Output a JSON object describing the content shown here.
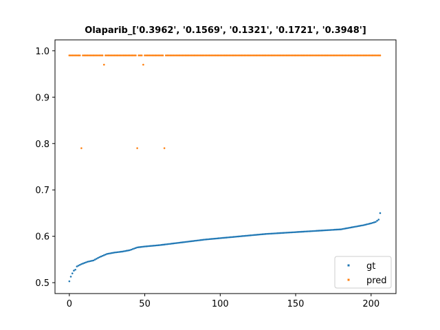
{
  "chart_data": {
    "type": "scatter",
    "title": "Olaparib_['0.3962', '0.1569', '0.1321', '0.1721', '0.3948']",
    "xlabel": "",
    "ylabel": "",
    "xlim": [
      -9.5,
      216.5
    ],
    "ylim": [
      0.4765,
      1.0235
    ],
    "x_ticks": [
      0,
      50,
      100,
      150,
      200
    ],
    "y_ticks": [
      0.5,
      0.6,
      0.7,
      0.8,
      0.9,
      1.0
    ],
    "y_tick_labels": [
      "0.5",
      "0.6",
      "0.7",
      "0.8",
      "0.9",
      "1.0"
    ],
    "grid": false,
    "legend_position": "lower-right",
    "n_points": 207,
    "series": [
      {
        "name": "gt",
        "color": "#1f77b4",
        "curve_anchors": [
          [
            0,
            0.503
          ],
          [
            1,
            0.513
          ],
          [
            2,
            0.52
          ],
          [
            3,
            0.526
          ],
          [
            4,
            0.528
          ],
          [
            5,
            0.535
          ],
          [
            8,
            0.54
          ],
          [
            12,
            0.545
          ],
          [
            16,
            0.548
          ],
          [
            20,
            0.555
          ],
          [
            25,
            0.562
          ],
          [
            30,
            0.565
          ],
          [
            35,
            0.567
          ],
          [
            40,
            0.57
          ],
          [
            45,
            0.576
          ],
          [
            50,
            0.578
          ],
          [
            60,
            0.581
          ],
          [
            70,
            0.585
          ],
          [
            80,
            0.589
          ],
          [
            90,
            0.593
          ],
          [
            100,
            0.596
          ],
          [
            110,
            0.599
          ],
          [
            120,
            0.602
          ],
          [
            130,
            0.605
          ],
          [
            140,
            0.607
          ],
          [
            150,
            0.609
          ],
          [
            160,
            0.611
          ],
          [
            170,
            0.613
          ],
          [
            180,
            0.615
          ],
          [
            185,
            0.618
          ],
          [
            190,
            0.621
          ],
          [
            195,
            0.624
          ],
          [
            200,
            0.628
          ],
          [
            203,
            0.631
          ],
          [
            205,
            0.636
          ],
          [
            206,
            0.65
          ]
        ]
      },
      {
        "name": "pred",
        "color": "#ff7f0e",
        "base_value": 0.99,
        "outliers": [
          [
            8,
            0.79
          ],
          [
            23,
            0.97
          ],
          [
            45,
            0.79
          ],
          [
            49,
            0.97
          ],
          [
            63,
            0.79
          ]
        ]
      }
    ]
  }
}
